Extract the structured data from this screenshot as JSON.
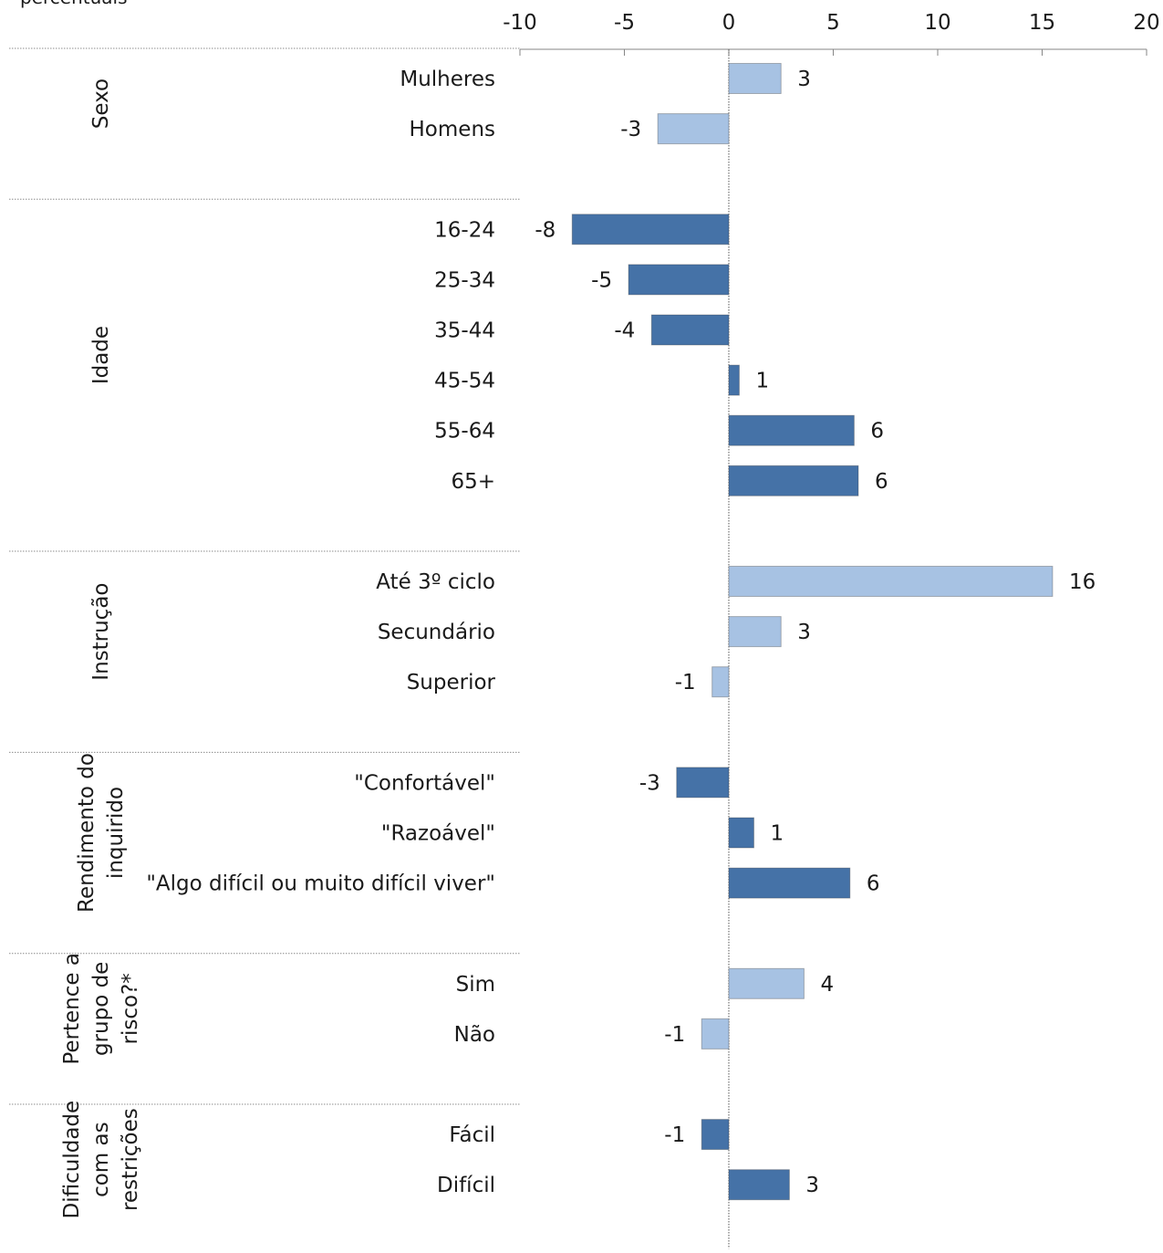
{
  "chart_data": {
    "type": "bar",
    "orientation": "horizontal",
    "unit_label": "percentuais",
    "xlim": [
      -10,
      20
    ],
    "xticks": [
      -10,
      -5,
      0,
      5,
      10,
      15,
      20
    ],
    "groups": [
      {
        "label": "Sexo",
        "color": "#A7C2E3",
        "items": [
          {
            "label": "Mulheres",
            "value": 2.5,
            "display": "3"
          },
          {
            "label": "Homens",
            "value": -3.4,
            "display": "-3"
          }
        ]
      },
      {
        "label": "Idade",
        "color": "#4572A7",
        "items": [
          {
            "label": "16-24",
            "value": -7.5,
            "display": "-8"
          },
          {
            "label": "25-34",
            "value": -4.8,
            "display": "-5"
          },
          {
            "label": "35-44",
            "value": -3.7,
            "display": "-4"
          },
          {
            "label": "45-54",
            "value": 0.5,
            "display": "1"
          },
          {
            "label": "55-64",
            "value": 6.0,
            "display": "6"
          },
          {
            "label": "65+",
            "value": 6.2,
            "display": "6"
          }
        ]
      },
      {
        "label": "Instrução",
        "color": "#A7C2E3",
        "items": [
          {
            "label": "Até 3º ciclo",
            "value": 15.5,
            "display": "16"
          },
          {
            "label": "Secundário",
            "value": 2.5,
            "display": "3"
          },
          {
            "label": "Superior",
            "value": -0.8,
            "display": "-1"
          }
        ]
      },
      {
        "label": "Rendimento do inquirido",
        "label_lines": [
          "Rendimento do",
          "inquirido"
        ],
        "color": "#4572A7",
        "items": [
          {
            "label": "\"Confortável\"",
            "value": -2.5,
            "display": "-3"
          },
          {
            "label": "\"Razoável\"",
            "value": 1.2,
            "display": "1"
          },
          {
            "label": "\"Algo difícil ou muito difícil viver\"",
            "value": 5.8,
            "display": "6"
          }
        ]
      },
      {
        "label": "Pertence a grupo de risco?*",
        "label_lines": [
          "Pertence a",
          "grupo de",
          "risco?*"
        ],
        "color": "#A7C2E3",
        "items": [
          {
            "label": "Sim",
            "value": 3.6,
            "display": "4"
          },
          {
            "label": "Não",
            "value": -1.3,
            "display": "-1"
          }
        ]
      },
      {
        "label": "Dificuldade com as restrições",
        "label_lines": [
          "Dificuldade",
          "com as",
          "restrições"
        ],
        "color": "#4572A7",
        "items": [
          {
            "label": "Fácil",
            "value": -1.3,
            "display": "-1"
          },
          {
            "label": "Difícil",
            "value": 2.9,
            "display": "3"
          }
        ]
      }
    ]
  }
}
